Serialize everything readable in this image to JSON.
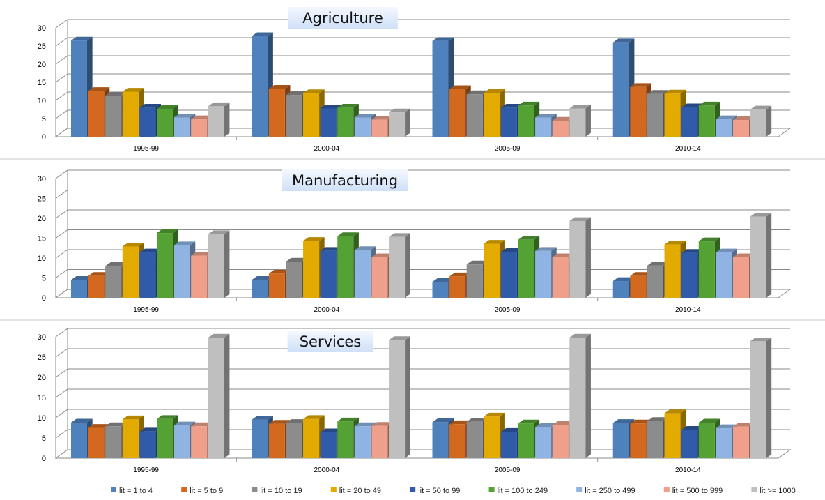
{
  "chart_data": [
    {
      "type": "bar",
      "title": "Agriculture",
      "categories": [
        "1995-99",
        "2000-04",
        "2005-09",
        "2010-14"
      ],
      "ylim": [
        0,
        30
      ],
      "yticks": [
        0,
        5,
        10,
        15,
        20,
        25,
        30
      ],
      "grid": true,
      "series": [
        {
          "name": "lit = 1 to 4",
          "values": [
            26.5,
            27.7,
            26.4,
            26.0
          ]
        },
        {
          "name": "lit = 5 to 9",
          "values": [
            12.6,
            13.2,
            13.1,
            13.7
          ]
        },
        {
          "name": "lit = 10 to 19",
          "values": [
            11.3,
            11.5,
            11.7,
            11.8
          ]
        },
        {
          "name": "lit = 20 to 49",
          "values": [
            12.4,
            12.0,
            12.1,
            11.9
          ]
        },
        {
          "name": "lit = 50 to 99",
          "values": [
            8.0,
            7.8,
            8.0,
            8.1
          ]
        },
        {
          "name": "lit = 100 to 249",
          "values": [
            7.7,
            8.0,
            8.6,
            8.6
          ]
        },
        {
          "name": "lit = 250 to 499",
          "values": [
            5.3,
            5.3,
            5.3,
            4.8
          ]
        },
        {
          "name": "lit = 500 to 999",
          "values": [
            4.8,
            4.7,
            4.4,
            4.6
          ]
        },
        {
          "name": "lit >= 1000",
          "values": [
            8.4,
            6.7,
            7.8,
            7.5
          ]
        }
      ]
    },
    {
      "type": "bar",
      "title": "Manufacturing",
      "categories": [
        "1995-99",
        "2000-04",
        "2005-09",
        "2010-14"
      ],
      "ylim": [
        0,
        30
      ],
      "yticks": [
        0,
        5,
        10,
        15,
        20,
        25,
        30
      ],
      "grid": true,
      "series": [
        {
          "name": "lit = 1 to 4",
          "values": [
            4.5,
            4.5,
            4.0,
            4.2
          ]
        },
        {
          "name": "lit = 5 to 9",
          "values": [
            5.5,
            6.1,
            5.4,
            5.5
          ]
        },
        {
          "name": "lit = 10 to 19",
          "values": [
            8.0,
            9.1,
            8.4,
            8.1
          ]
        },
        {
          "name": "lit = 20 to 49",
          "values": [
            12.9,
            14.3,
            13.6,
            13.4
          ]
        },
        {
          "name": "lit = 50 to 99",
          "values": [
            11.4,
            11.8,
            11.5,
            11.3
          ]
        },
        {
          "name": "lit = 100 to 249",
          "values": [
            16.3,
            15.5,
            14.6,
            14.2
          ]
        },
        {
          "name": "lit = 250 to 499",
          "values": [
            13.2,
            12.0,
            11.8,
            11.4
          ]
        },
        {
          "name": "lit = 500 to 999",
          "values": [
            10.6,
            10.2,
            10.2,
            10.2
          ]
        },
        {
          "name": "lit >= 1000",
          "values": [
            16.0,
            15.3,
            19.3,
            20.4
          ]
        }
      ]
    },
    {
      "type": "bar",
      "title": "Services",
      "categories": [
        "1995-99",
        "2000-04",
        "2005-09",
        "2010-14"
      ],
      "ylim": [
        0,
        30
      ],
      "yticks": [
        0,
        5,
        10,
        15,
        20,
        25,
        30
      ],
      "grid": true,
      "series": [
        {
          "name": "lit = 1 to 4",
          "values": [
            8.8,
            9.5,
            8.9,
            8.7
          ]
        },
        {
          "name": "lit = 5 to 9",
          "values": [
            7.5,
            8.5,
            8.4,
            8.6
          ]
        },
        {
          "name": "lit = 10 to 19",
          "values": [
            7.9,
            8.7,
            9.0,
            9.2
          ]
        },
        {
          "name": "lit = 20 to 49",
          "values": [
            9.6,
            9.7,
            10.3,
            11.1
          ]
        },
        {
          "name": "lit = 50 to 99",
          "values": [
            6.6,
            6.4,
            6.5,
            7.0
          ]
        },
        {
          "name": "lit = 100 to 249",
          "values": [
            9.7,
            9.1,
            8.6,
            8.8
          ]
        },
        {
          "name": "lit = 250 to 499",
          "values": [
            8.1,
            7.9,
            7.7,
            7.4
          ]
        },
        {
          "name": "lit = 500 to 999",
          "values": [
            7.9,
            8.0,
            8.2,
            7.8
          ]
        },
        {
          "name": "lit >= 1000",
          "values": [
            29.8,
            29.2,
            29.8,
            28.9
          ]
        }
      ]
    }
  ],
  "legend": {
    "placement": "bottom",
    "items": [
      "lit = 1 to 4",
      "lit = 5 to 9",
      "lit = 10 to 19",
      "lit = 20 to 49",
      "lit = 50 to 99",
      "lit = 100 to 249",
      "lit = 250 to 499",
      "lit = 500 to 999",
      "lit >= 1000"
    ]
  },
  "colors": [
    "#4f81bd",
    "#d2691e",
    "#8c8c8c",
    "#e3aa00",
    "#2f5ba8",
    "#54a234",
    "#8fb4e3",
    "#f0a08a",
    "#bfbfbf"
  ]
}
